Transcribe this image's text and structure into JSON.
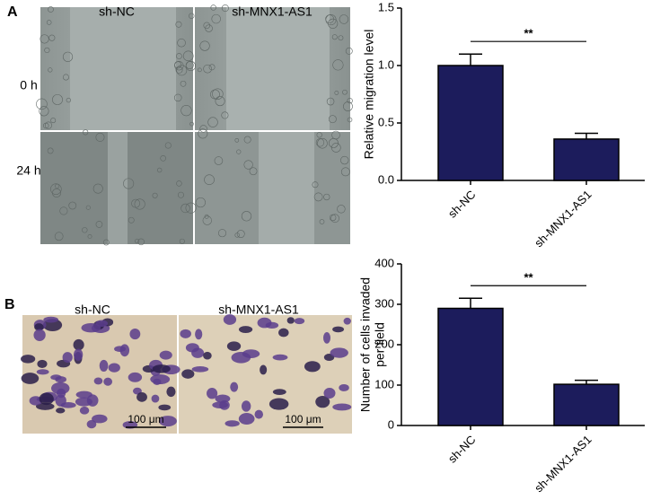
{
  "figure": {
    "panel_a": "A",
    "panel_b": "B",
    "a_columns": [
      "sh-NC",
      "sh-MNX1-AS1"
    ],
    "a_rows": [
      "0 h",
      "24 h"
    ],
    "b_columns": [
      "sh-NC",
      "sh-MNX1-AS1"
    ],
    "b_scale": [
      "100 μm",
      "100 μm"
    ]
  },
  "chart_data": [
    {
      "type": "bar",
      "ylabel": [
        "Relative migration level"
      ],
      "categories": [
        "sh-NC",
        "sh-MNX1-AS1"
      ],
      "values": [
        1.0,
        0.36
      ],
      "errors": [
        0.1,
        0.05
      ],
      "color": "#1c1c5c",
      "ylim": [
        0,
        1.5
      ],
      "yticks": [
        {
          "value": 0,
          "label": "0.0"
        },
        {
          "value": 0.5,
          "label": "0.5"
        },
        {
          "value": 1,
          "label": "1.0"
        },
        {
          "value": 1.5,
          "label": "1.5"
        }
      ],
      "annotation": "**"
    },
    {
      "type": "bar",
      "ylabel": [
        "Number of cells invaded",
        "per field"
      ],
      "categories": [
        "sh-NC",
        "sh-MNX1-AS1"
      ],
      "values": [
        290,
        102
      ],
      "errors": [
        25,
        10
      ],
      "color": "#1c1c5c",
      "ylim": [
        0,
        400
      ],
      "yticks": [
        0,
        100,
        200,
        300,
        400
      ],
      "annotation": "**"
    }
  ]
}
